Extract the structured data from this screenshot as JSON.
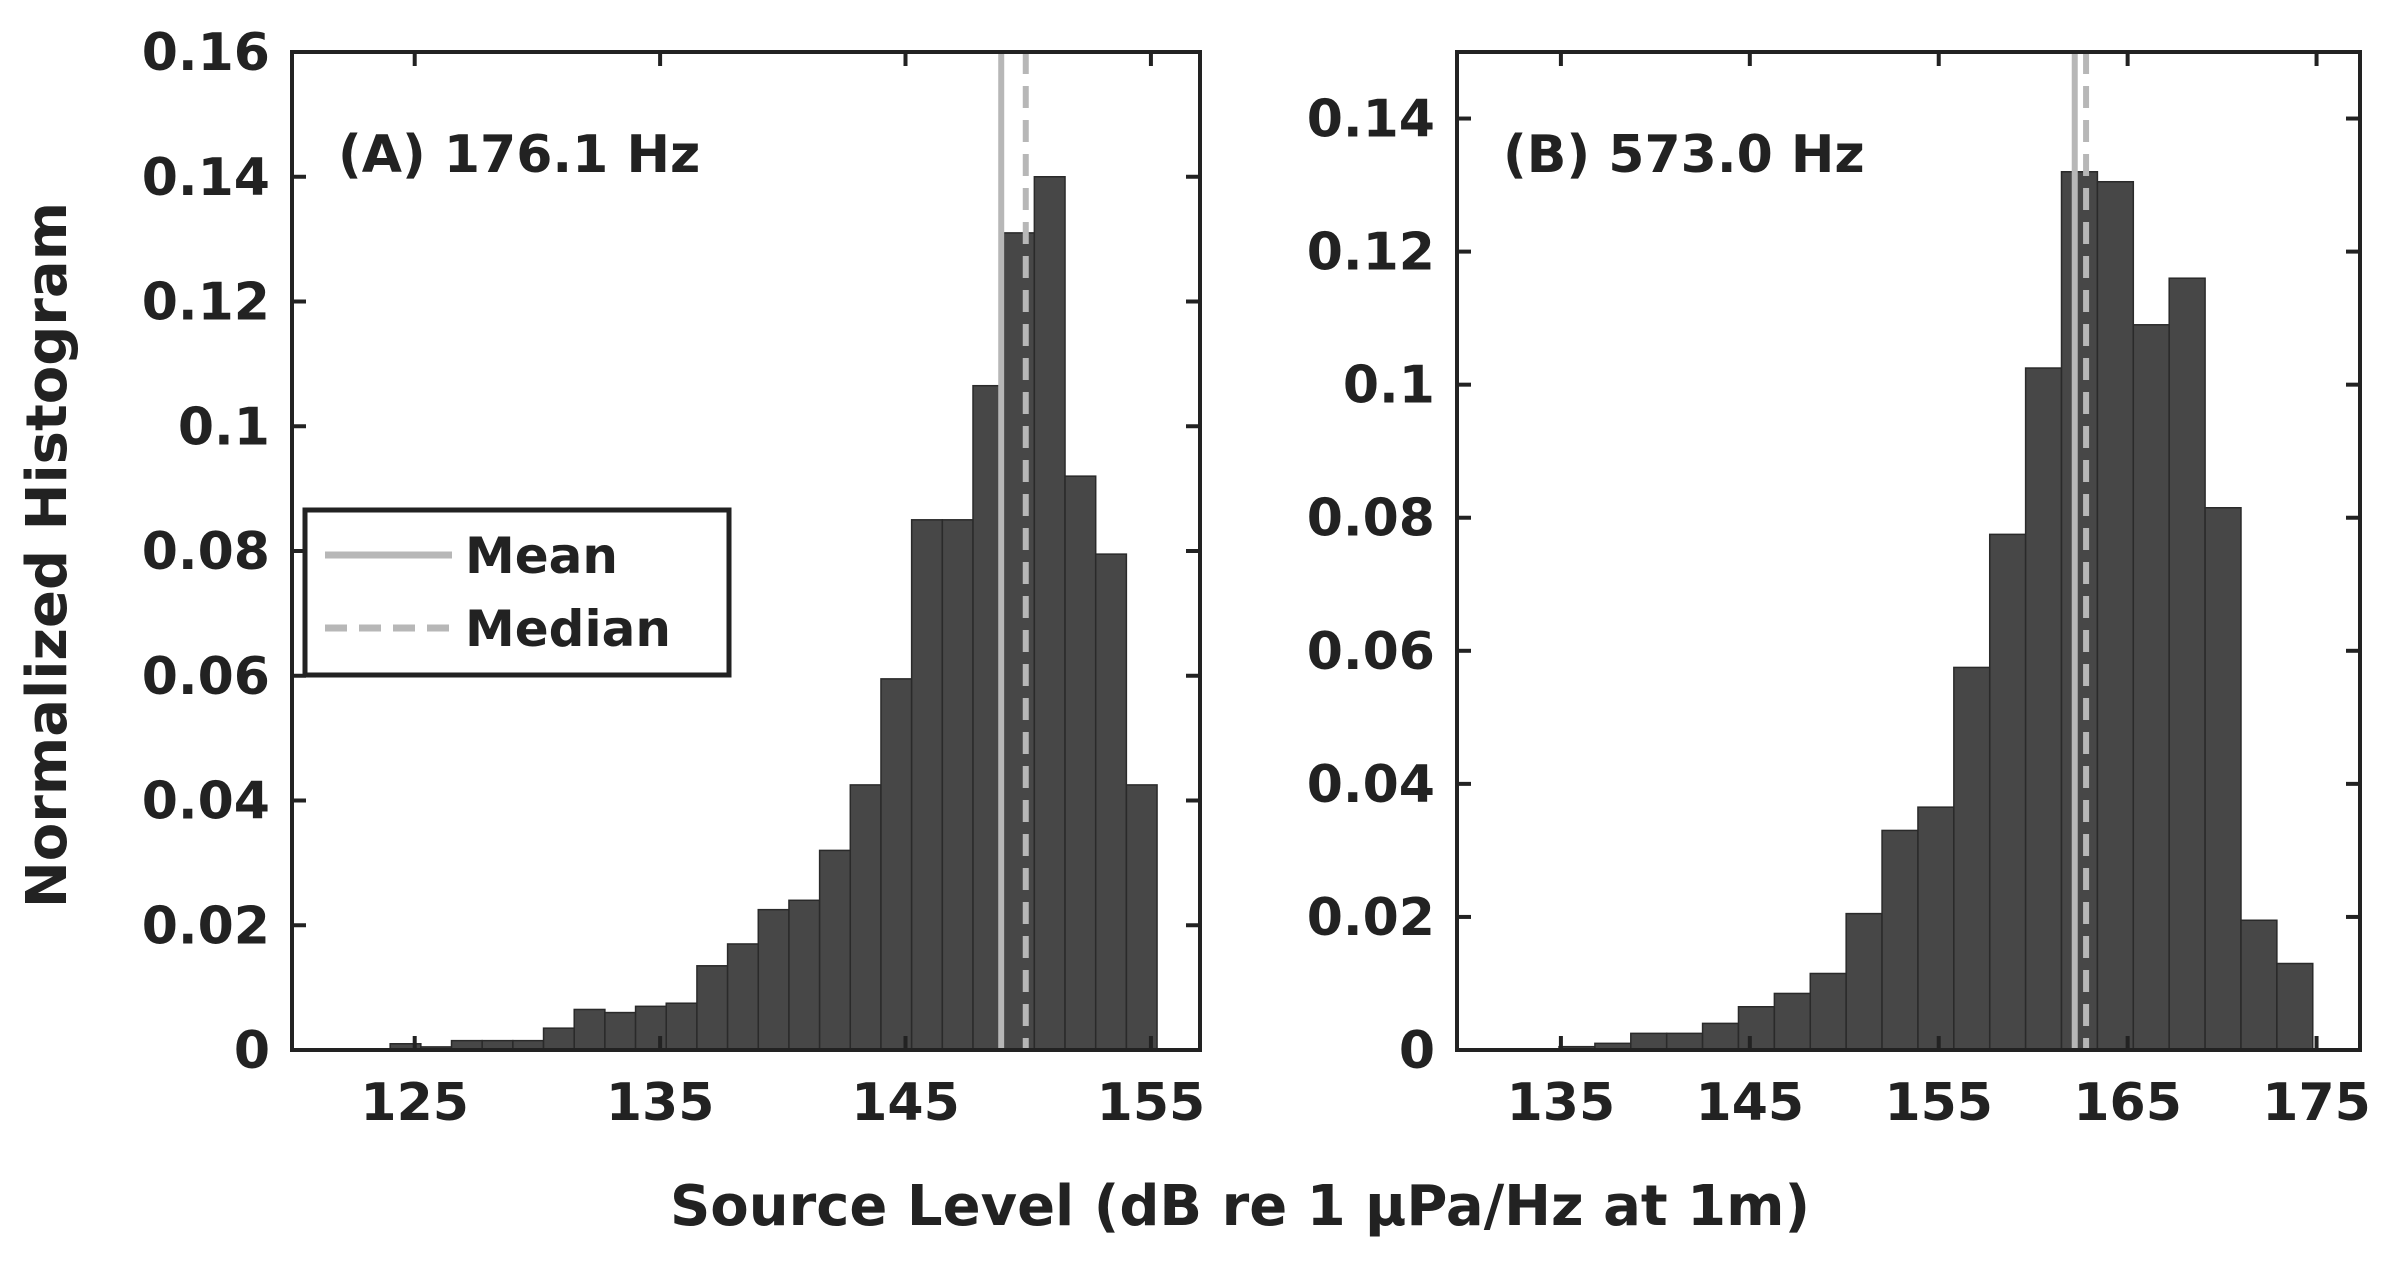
{
  "figure": {
    "ylabel": "Normalized Histogram",
    "xlabel": "Source Level (dB re 1 μPa/Hz at 1m)"
  },
  "colors": {
    "bar_fill": "#474747",
    "bar_edge": "#2a2a2a",
    "axis": "#222222",
    "mean_line": "#b7b7b7",
    "median_line": "#b7b7b7"
  },
  "legend": {
    "mean_label": "Mean",
    "median_label": "Median",
    "placement": "left-middle of panel A"
  },
  "chart_data": [
    {
      "type": "bar",
      "panel_title": "(A) 176.1 Hz",
      "xlim": [
        120,
        157
      ],
      "ylim": [
        0,
        0.16
      ],
      "xticks": [
        125,
        135,
        145,
        155
      ],
      "xtick_labels": [
        "125",
        "135",
        "145",
        "155"
      ],
      "yticks": [
        0,
        0.02,
        0.04,
        0.06,
        0.08,
        0.1,
        0.12,
        0.14,
        0.16
      ],
      "ytick_labels": [
        "0",
        "0.02",
        "0.04",
        "0.06",
        "0.08",
        "0.1",
        "0.12",
        "0.14",
        "0.16"
      ],
      "bin_width": 1.25,
      "bin_starts": [
        120.25,
        121.5,
        122.75,
        124.0,
        125.25,
        126.5,
        127.75,
        129.0,
        130.25,
        131.5,
        132.75,
        134.0,
        135.25,
        136.5,
        137.75,
        139.0,
        140.25,
        141.5,
        142.75,
        144.0,
        145.25,
        146.5,
        147.75,
        149.0,
        150.25,
        151.5,
        152.75,
        154.0,
        155.25
      ],
      "values": [
        0.0,
        0.0,
        0.0,
        0.001,
        0.0005,
        0.0015,
        0.0015,
        0.0015,
        0.0035,
        0.0065,
        0.006,
        0.007,
        0.0075,
        0.0135,
        0.017,
        0.0225,
        0.024,
        0.032,
        0.0425,
        0.0595,
        0.085,
        0.085,
        0.1065,
        0.131,
        0.14,
        0.092,
        0.0795,
        0.0425,
        0.0
      ],
      "mean": 148.9,
      "median": 149.9
    },
    {
      "type": "bar",
      "panel_title": "(B) 573.0 Hz",
      "xlim": [
        129.5,
        177.3
      ],
      "ylim": [
        0,
        0.15
      ],
      "xticks": [
        135,
        145,
        155,
        165,
        175
      ],
      "xtick_labels": [
        "135",
        "145",
        "155",
        "165",
        "175"
      ],
      "yticks": [
        0,
        0.02,
        0.04,
        0.06,
        0.08,
        0.1,
        0.12,
        0.14
      ],
      "ytick_labels": [
        "0",
        "0.02",
        "0.04",
        "0.06",
        "0.08",
        "0.1",
        "0.12",
        "0.14"
      ],
      "bin_width": 1.9,
      "bin_starts": [
        131.1,
        133.0,
        134.9,
        136.8,
        138.7,
        140.6,
        142.5,
        144.4,
        146.3,
        148.2,
        150.1,
        152.0,
        153.9,
        155.8,
        157.7,
        159.6,
        161.5,
        163.4,
        165.3,
        167.2,
        169.1,
        171.0,
        172.9,
        174.8
      ],
      "values": [
        0.0,
        0.0,
        0.0005,
        0.001,
        0.0025,
        0.0025,
        0.004,
        0.0065,
        0.0085,
        0.0115,
        0.0205,
        0.033,
        0.0365,
        0.0575,
        0.0775,
        0.1025,
        0.132,
        0.1305,
        0.109,
        0.116,
        0.0815,
        0.0195,
        0.013,
        0.0
      ],
      "mean": 162.2,
      "median": 162.8
    }
  ]
}
